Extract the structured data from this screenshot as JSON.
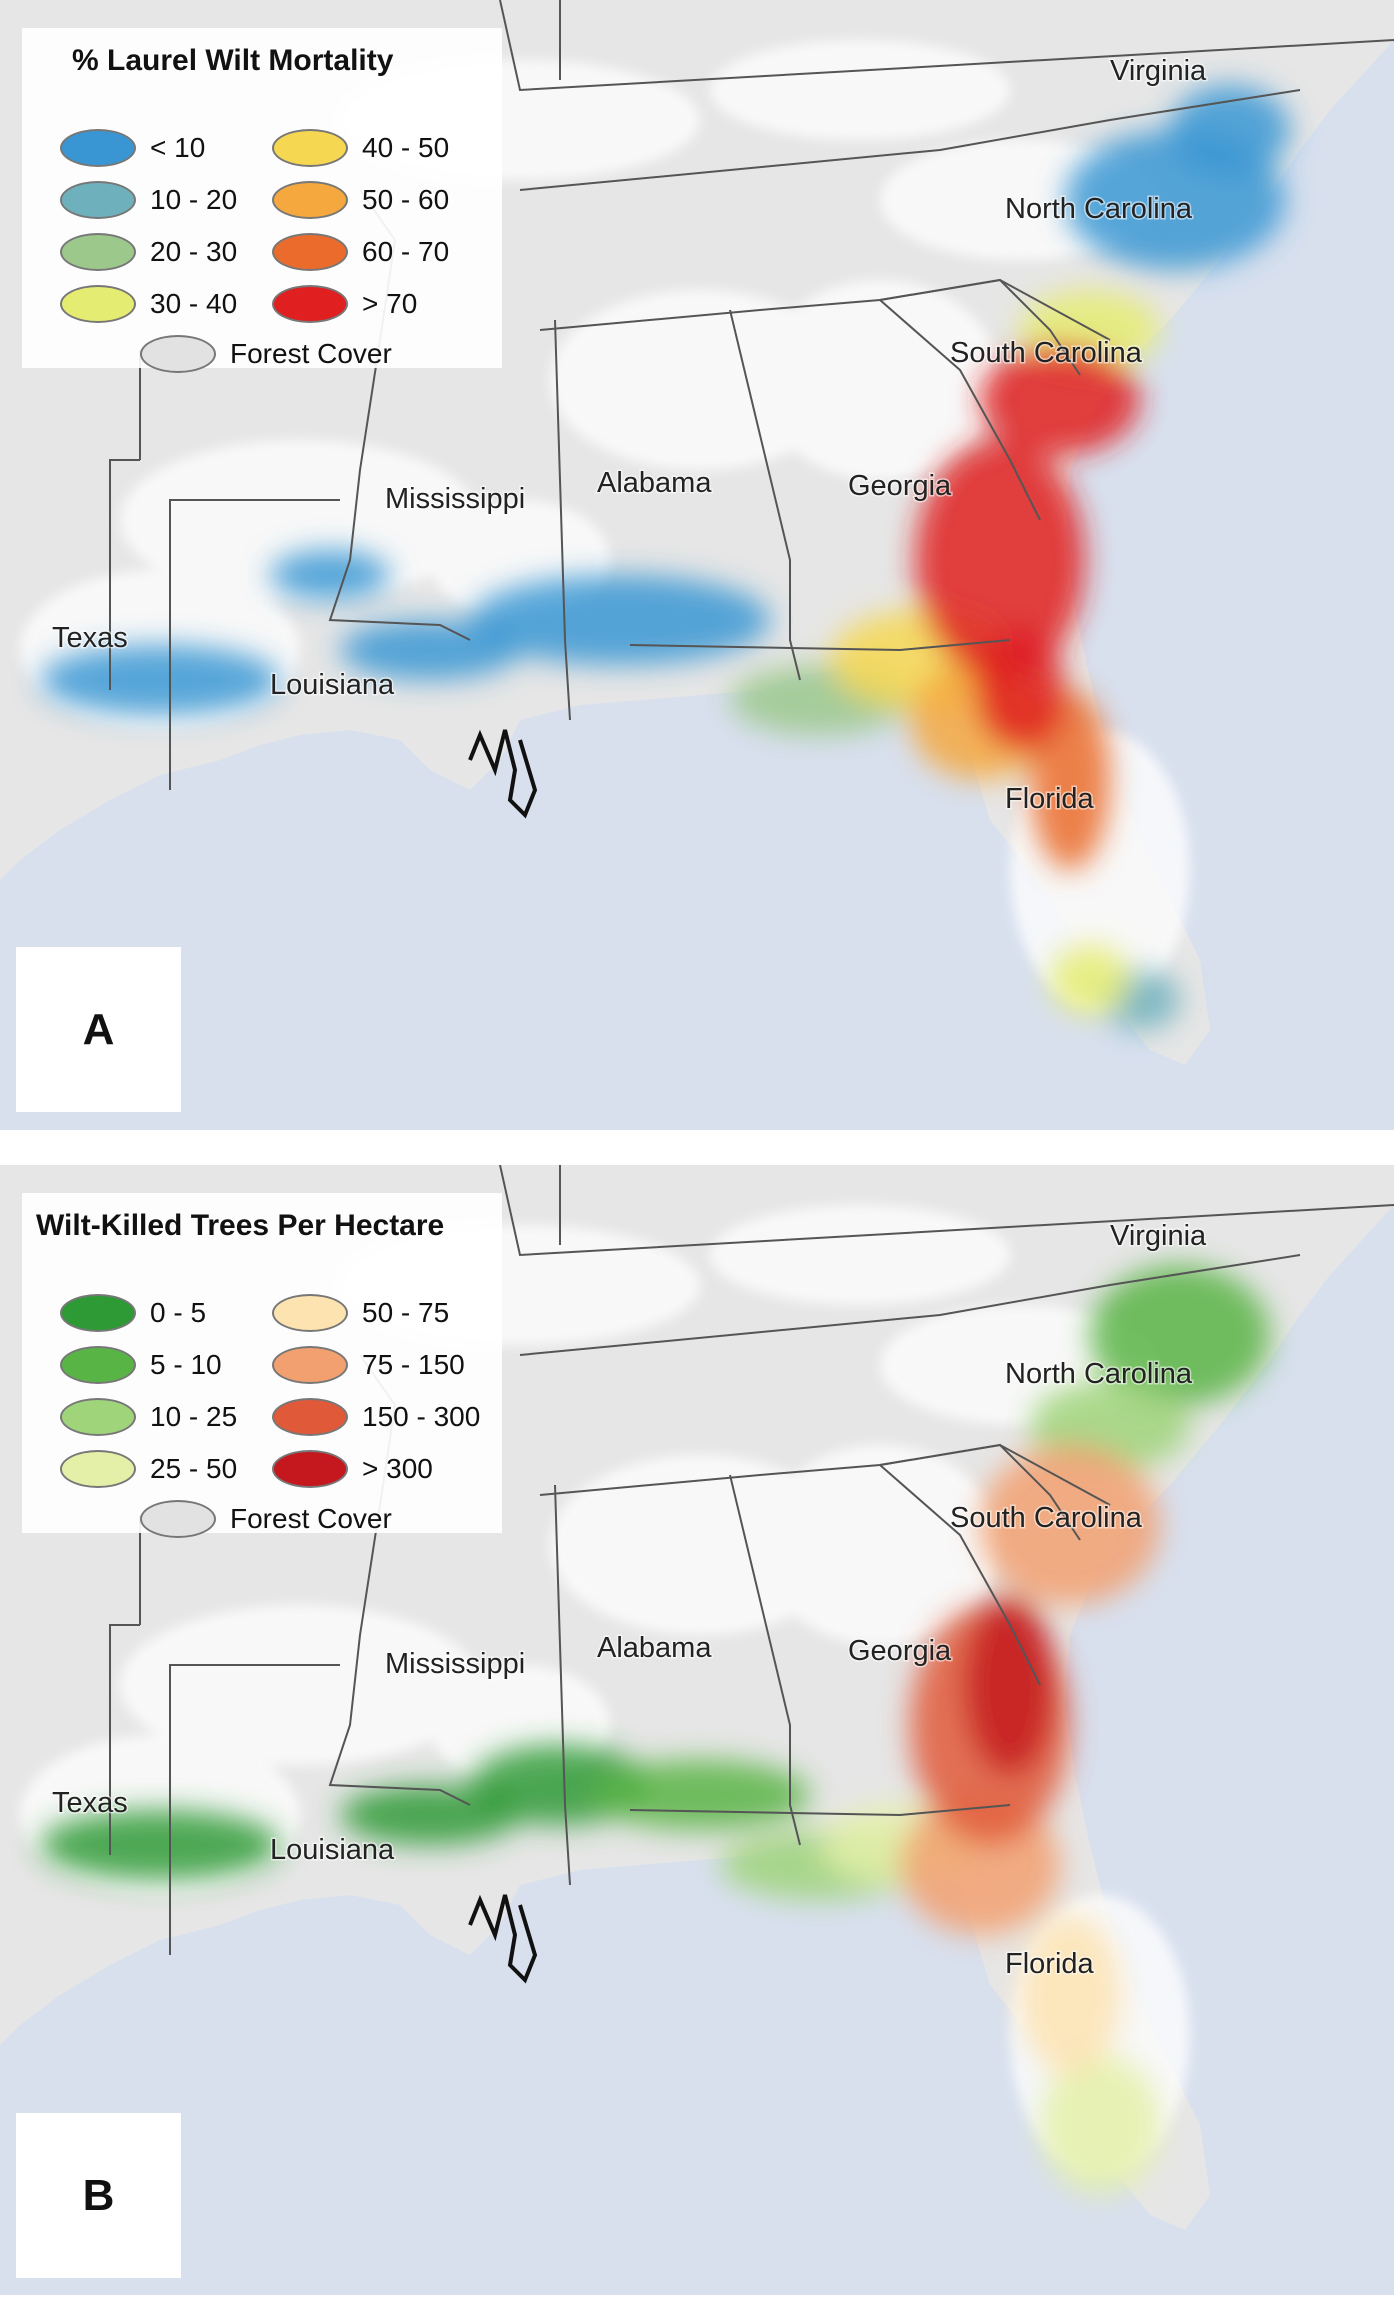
{
  "colors": {
    "ocean": "#d8e0ee",
    "land": "#e6e6e6",
    "forest": "#ffffff",
    "border": "#555555",
    "coast": "#111111"
  },
  "state_labels": {
    "virginia": "Virginia",
    "north_carolina": "North Carolina",
    "south_carolina": "South Carolina",
    "georgia": "Georgia",
    "alabama": "Alabama",
    "mississippi": "Mississippi",
    "texas": "Texas",
    "louisiana": "Louisiana",
    "florida": "Florida"
  },
  "panel_a": {
    "letter": "A",
    "legend": {
      "title": "% Laurel Wilt Mortality",
      "items": [
        {
          "label": "< 10",
          "color": "#3a96d3"
        },
        {
          "label": "10 - 20",
          "color": "#6fb0bd"
        },
        {
          "label": "20 - 30",
          "color": "#9cc88b"
        },
        {
          "label": "30 - 40",
          "color": "#e5ec72"
        },
        {
          "label": "40 - 50",
          "color": "#f6d752"
        },
        {
          "label": "50 - 60",
          "color": "#f5a83e"
        },
        {
          "label": "60 - 70",
          "color": "#ea6b2c"
        },
        {
          "label": "> 70",
          "color": "#df1f20"
        },
        {
          "label": "Forest Cover",
          "color": "#e2e2e2"
        }
      ]
    }
  },
  "panel_b": {
    "letter": "B",
    "legend": {
      "title": "Wilt-Killed Trees Per Hectare",
      "items": [
        {
          "label": "0 - 5",
          "color": "#2e9a35"
        },
        {
          "label": "5 - 10",
          "color": "#59b446"
        },
        {
          "label": "10 - 25",
          "color": "#9fd47a"
        },
        {
          "label": "25 - 50",
          "color": "#e4f0a8"
        },
        {
          "label": "50 - 75",
          "color": "#fde3b0"
        },
        {
          "label": "75 - 150",
          "color": "#f2a070"
        },
        {
          "label": "150 - 300",
          "color": "#e05a3a"
        },
        {
          "label": "> 300",
          "color": "#c4171e"
        },
        {
          "label": "Forest Cover",
          "color": "#e2e2e2"
        }
      ]
    }
  }
}
